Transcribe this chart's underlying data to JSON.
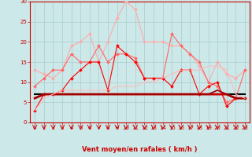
{
  "xlabel": "Vent moyen/en rafales ( km/h )",
  "xlim": [
    -0.5,
    23.5
  ],
  "ylim": [
    0,
    30
  ],
  "yticks": [
    0,
    5,
    10,
    15,
    20,
    25,
    30
  ],
  "xticks": [
    0,
    1,
    2,
    3,
    4,
    5,
    6,
    7,
    8,
    9,
    10,
    11,
    12,
    13,
    14,
    15,
    16,
    17,
    18,
    19,
    20,
    21,
    22,
    23
  ],
  "bg_color": "#cce8e8",
  "grid_color": "#aacccc",
  "lines": [
    {
      "x": [
        0,
        1,
        2,
        3,
        4,
        5,
        6,
        7,
        8,
        9,
        10,
        11,
        12,
        13,
        14,
        15,
        16,
        17,
        18,
        19,
        20,
        21,
        22,
        23
      ],
      "y": [
        13,
        12,
        11,
        13,
        19,
        20,
        22,
        15,
        20,
        26,
        30,
        28,
        20,
        20,
        20,
        19,
        19,
        17,
        14,
        10,
        15,
        12,
        11,
        13
      ],
      "color": "#ffaaaa",
      "marker": "D",
      "markersize": 2.0,
      "linewidth": 0.8
    },
    {
      "x": [
        0,
        1,
        2,
        3,
        4,
        5,
        6,
        7,
        8,
        9,
        10,
        11,
        12,
        13,
        14,
        15,
        16,
        17,
        18,
        19,
        20,
        21,
        22,
        23
      ],
      "y": [
        9,
        11,
        13,
        13,
        17,
        15,
        15,
        19,
        15,
        17,
        17,
        16,
        11,
        11,
        11,
        22,
        19,
        17,
        15,
        10,
        9,
        5,
        6,
        13
      ],
      "color": "#ff6666",
      "marker": "D",
      "markersize": 2.0,
      "linewidth": 0.8
    },
    {
      "x": [
        0,
        1,
        2,
        3,
        4,
        5,
        6,
        7,
        8,
        9,
        10,
        11,
        12,
        13,
        14,
        15,
        16,
        17,
        18,
        19,
        20,
        21,
        22,
        23
      ],
      "y": [
        3,
        7,
        7,
        8,
        11,
        13,
        15,
        15,
        8,
        19,
        17,
        15,
        11,
        11,
        11,
        9,
        13,
        13,
        7,
        9,
        10,
        4,
        6,
        6
      ],
      "color": "#ff0000",
      "marker": "D",
      "markersize": 2.0,
      "linewidth": 0.8
    },
    {
      "x": [
        0,
        1,
        2,
        3,
        4,
        5,
        6,
        7,
        8,
        9,
        10,
        11,
        12,
        13,
        14,
        15,
        16,
        17,
        18,
        19,
        20,
        21,
        22,
        23
      ],
      "y": [
        7,
        7,
        7,
        7,
        7,
        7,
        7,
        7,
        7,
        7,
        7,
        7,
        7,
        7,
        7,
        7,
        7,
        7,
        7,
        7,
        7,
        7,
        7,
        7
      ],
      "color": "#000000",
      "marker": null,
      "markersize": 0,
      "linewidth": 1.5
    },
    {
      "x": [
        0,
        1,
        2,
        3,
        4,
        5,
        6,
        7,
        8,
        9,
        10,
        11,
        12,
        13,
        14,
        15,
        16,
        17,
        18,
        19,
        20,
        21,
        22,
        23
      ],
      "y": [
        6,
        7,
        7,
        7,
        7,
        7,
        7,
        7,
        7,
        7,
        7,
        7,
        7,
        7,
        7,
        7,
        7,
        7,
        7,
        7,
        7,
        7,
        6,
        6
      ],
      "color": "#cc0000",
      "marker": null,
      "markersize": 0,
      "linewidth": 2.0
    },
    {
      "x": [
        0,
        1,
        2,
        3,
        4,
        5,
        6,
        7,
        8,
        9,
        10,
        11,
        12,
        13,
        14,
        15,
        16,
        17,
        18,
        19,
        20,
        21,
        22,
        23
      ],
      "y": [
        6,
        7,
        7,
        7,
        7,
        7,
        7,
        7,
        7,
        7,
        7,
        7,
        7,
        7,
        7,
        7,
        7,
        7,
        7,
        7,
        8,
        7,
        6,
        6
      ],
      "color": "#990000",
      "marker": null,
      "markersize": 0,
      "linewidth": 1.2
    },
    {
      "x": [
        0,
        1,
        2,
        3,
        4,
        5,
        6,
        7,
        8,
        9,
        10,
        11,
        12,
        13,
        14,
        15,
        16,
        17,
        18,
        19,
        20,
        21,
        22,
        23
      ],
      "y": [
        3,
        6,
        7,
        8,
        8,
        8,
        8,
        8,
        8,
        9,
        9,
        9,
        10,
        10,
        11,
        12,
        13,
        13,
        13,
        14,
        14,
        13,
        7,
        6
      ],
      "color": "#ffbbbb",
      "marker": null,
      "markersize": 0,
      "linewidth": 0.8
    }
  ]
}
